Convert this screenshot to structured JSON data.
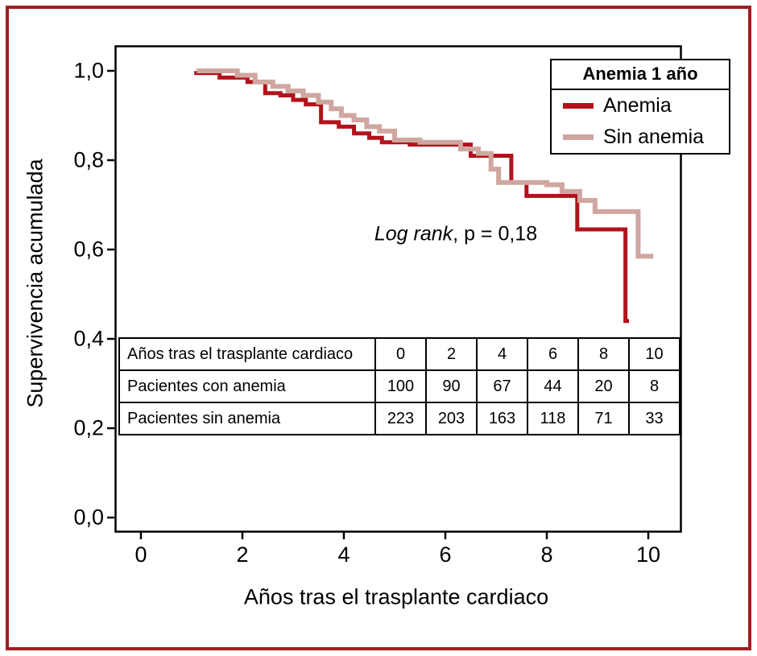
{
  "colors": {
    "frame": "#a21d24",
    "plot_border": "#000000",
    "background": "#ffffff"
  },
  "chart_data": {
    "type": "line",
    "subtype": "kaplan-meier-step",
    "title": "",
    "xlabel": "Años tras el trasplante cardiaco",
    "ylabel": "Supervivencia acumulada",
    "xlim": [
      0,
      10.6
    ],
    "ylim": [
      0.0,
      1.05
    ],
    "xticks": [
      0,
      2,
      4,
      6,
      8,
      10
    ],
    "xtick_labels": [
      "0",
      "2",
      "4",
      "6",
      "8",
      "10"
    ],
    "yticks": [
      0.0,
      0.2,
      0.4,
      0.6,
      0.8,
      1.0
    ],
    "ytick_labels": [
      "0,0",
      "0,2",
      "0,4",
      "0,6",
      "0,8",
      "1,0"
    ],
    "grid": false,
    "annotation": {
      "italic": "Log rank",
      "rest": ", p = 0,18"
    },
    "legend": {
      "position": "top-right",
      "title": "Anemia 1 año",
      "entries": [
        {
          "label": "Anemia",
          "color": "#b2121b"
        },
        {
          "label": "Sin anemia",
          "color": "#cfa7a0"
        }
      ]
    },
    "series": [
      {
        "name": "Anemia",
        "color": "#b2121b",
        "width": 5,
        "points": [
          [
            1.05,
            0.995
          ],
          [
            1.55,
            0.985
          ],
          [
            2.1,
            0.975
          ],
          [
            2.45,
            0.95
          ],
          [
            2.75,
            0.945
          ],
          [
            3.0,
            0.935
          ],
          [
            3.25,
            0.925
          ],
          [
            3.55,
            0.885
          ],
          [
            3.9,
            0.875
          ],
          [
            4.2,
            0.86
          ],
          [
            4.5,
            0.85
          ],
          [
            4.75,
            0.84
          ],
          [
            5.3,
            0.835
          ],
          [
            6.5,
            0.81
          ],
          [
            7.3,
            0.75
          ],
          [
            7.6,
            0.72
          ],
          [
            8.6,
            0.645
          ],
          [
            9.55,
            0.44
          ],
          [
            9.62,
            0.44
          ]
        ]
      },
      {
        "name": "Sin anemia",
        "color": "#cfa7a0",
        "width": 6,
        "points": [
          [
            1.1,
            1.0
          ],
          [
            1.9,
            0.99
          ],
          [
            2.25,
            0.975
          ],
          [
            2.6,
            0.965
          ],
          [
            2.9,
            0.955
          ],
          [
            3.2,
            0.945
          ],
          [
            3.5,
            0.93
          ],
          [
            3.75,
            0.915
          ],
          [
            3.95,
            0.9
          ],
          [
            4.2,
            0.89
          ],
          [
            4.45,
            0.875
          ],
          [
            4.7,
            0.865
          ],
          [
            5.0,
            0.845
          ],
          [
            5.5,
            0.84
          ],
          [
            6.3,
            0.825
          ],
          [
            6.65,
            0.815
          ],
          [
            6.9,
            0.78
          ],
          [
            7.05,
            0.75
          ],
          [
            8.0,
            0.745
          ],
          [
            8.3,
            0.73
          ],
          [
            8.65,
            0.71
          ],
          [
            8.95,
            0.685
          ],
          [
            9.8,
            0.585
          ],
          [
            10.1,
            0.585
          ]
        ]
      }
    ],
    "risk_table": {
      "rows": [
        {
          "label": "Años tras el trasplante cardiaco",
          "values": [
            "0",
            "2",
            "4",
            "6",
            "8",
            "10"
          ]
        },
        {
          "label": "Pacientes con anemia",
          "values": [
            "100",
            "90",
            "67",
            "44",
            "20",
            "8"
          ]
        },
        {
          "label": "Pacientes sin anemia",
          "values": [
            "223",
            "203",
            "163",
            "118",
            "71",
            "33"
          ]
        }
      ]
    }
  }
}
